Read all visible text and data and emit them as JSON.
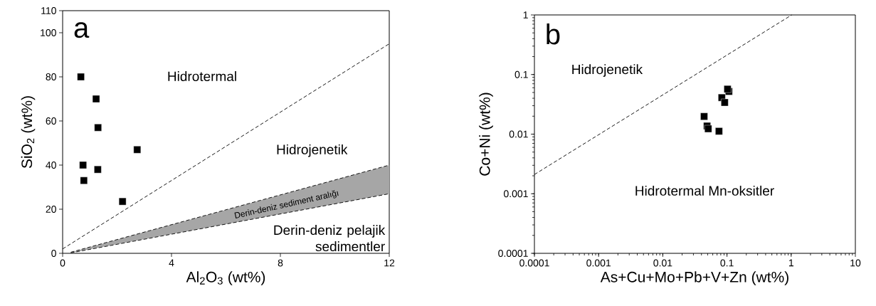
{
  "chart_data": [
    {
      "type": "scatter",
      "title": "a",
      "xlabel": "Al$_{2}$O$_{3}$ (wt%)",
      "ylabel": "SiO$_{2}$ (wt%)",
      "xlim": [
        0,
        12
      ],
      "ylim": [
        0,
        110
      ],
      "xticks": [
        0,
        4,
        8,
        12
      ],
      "yticks": [
        0,
        20,
        40,
        60,
        80,
        100,
        110
      ],
      "grid": false,
      "series": [
        {
          "marker": "square",
          "color": "#000000",
          "x": [
            0.67,
            1.23,
            1.3,
            2.74,
            0.75,
            1.29,
            0.78,
            2.2
          ],
          "values": [
            80,
            70,
            57,
            47,
            40,
            38,
            33,
            23.5
          ]
        },
        {
          "type": "line",
          "line_style": "dashed",
          "color": "#000000",
          "x": [
            0,
            12
          ],
          "values": [
            2,
            95
          ]
        },
        {
          "type": "line",
          "line_style": "dashed",
          "color": "#000000",
          "x": [
            0.3,
            12
          ],
          "values": [
            0.5,
            40
          ],
          "lower": [
            0.2,
            27
          ],
          "upper": [
            0.5,
            40
          ]
        },
        {
          "type": "line",
          "line_style": "dashed",
          "color": "#000000",
          "x": [
            0.3,
            12
          ],
          "values": [
            0.2,
            27
          ]
        }
      ],
      "annotations": [
        "Hidrotermal",
        "Hidrojenetik",
        "Derin-deniz sediment aralığı",
        "Derin-deniz pelajik sedimentler"
      ]
    },
    {
      "type": "scatter",
      "title": "b",
      "xlabel": "As+Cu+Mo+Pb+V+Zn (wt%)",
      "ylabel": "Co+Ni (wt%)",
      "log": "xy",
      "xlim": [
        0.0001,
        10
      ],
      "ylim": [
        0.0001,
        1
      ],
      "xticks": [
        0.0001,
        0.001,
        0.01,
        0.1,
        1,
        10
      ],
      "yticks": [
        0.0001,
        0.001,
        0.01,
        0.1,
        1
      ],
      "grid": false,
      "series": [
        {
          "marker": "square",
          "color": "#000000",
          "x": [
            0.107,
            0.102,
            0.083,
            0.092,
            0.044,
            0.049,
            0.051,
            0.075
          ],
          "values": [
            0.052,
            0.057,
            0.041,
            0.034,
            0.0198,
            0.0137,
            0.0123,
            0.0112
          ]
        },
        {
          "type": "line",
          "line_style": "dashed",
          "color": "#000000",
          "x": [
            0.0001,
            1.02
          ],
          "values": [
            0.0021,
            1
          ]
        }
      ],
      "annotations": [
        "Hidrojenetik",
        "Hidrotermal Mn-oksitler"
      ]
    }
  ]
}
